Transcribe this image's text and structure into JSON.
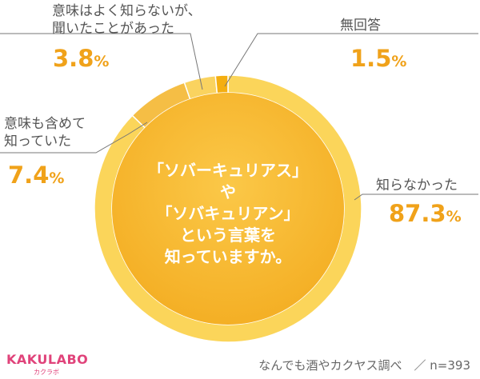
{
  "chart_data": {
    "type": "pie",
    "subtype": "donut",
    "title_lines": [
      "「ソバーキュリアス」",
      "や",
      "「ソバキュリアン」",
      "という言葉を",
      "知っていますか。"
    ],
    "slices": [
      {
        "label_lines": [
          "知らなかった"
        ],
        "value": 87.3,
        "value_text": "87.3",
        "unit": "%",
        "color": "#fbd55a"
      },
      {
        "label_lines": [
          "意味も含めて",
          "知っていた"
        ],
        "value": 7.4,
        "value_text": "7.4",
        "unit": "%",
        "color": "#f5be45"
      },
      {
        "label_lines": [
          "意味はよく知らないが、",
          "聞いたことがあった"
        ],
        "value": 3.8,
        "value_text": "3.8",
        "unit": "%",
        "color": "#fad35f"
      },
      {
        "label_lines": [
          "無回答"
        ],
        "value": 1.5,
        "value_text": "1.5",
        "unit": "%",
        "color": "#f4ae10"
      }
    ],
    "start_angle_deg": 0,
    "direction": "clockwise",
    "center_color": "#f9b834",
    "legend": "none"
  },
  "brand": {
    "logo": "KAKULABO",
    "logo_sub": "カクラボ"
  },
  "source": "なんでも酒やカクヤス調べ　／ n=393"
}
